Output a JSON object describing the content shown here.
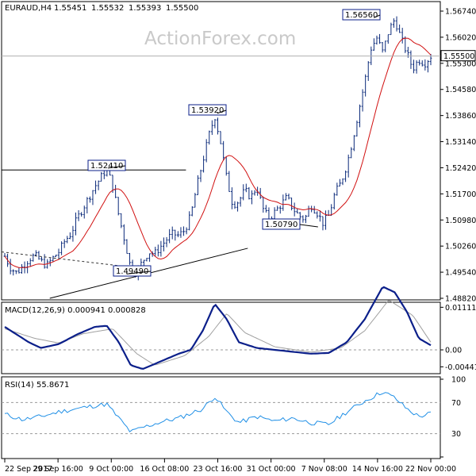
{
  "watermark": "ActionForex.com",
  "colors": {
    "bars": "#0b2a7a",
    "ma": "#d11010",
    "macd": "#0b1f8a",
    "signal": "#a0a0a0",
    "rsi": "#1f8fe6",
    "panel_border": "#000000",
    "grid": "#9a9a9a"
  },
  "x_labels": [
    "22 Sep 2017",
    "29 Sep 16:00",
    "9 Oct 00:00",
    "16 Oct 08:00",
    "23 Oct 16:00",
    "31 Oct 00:00",
    "7 Nov 08:00",
    "14 Nov 16:00",
    "22 Nov 00:00"
  ],
  "chart_data": [
    {
      "type": "line",
      "title": "EURAUD,H4",
      "ohlc": {
        "open": "1.55451",
        "high": "1.55532",
        "low": "1.55393",
        "close": "1.55500"
      },
      "price_tag": "1.55500",
      "ylim": [
        1.4882,
        1.5674
      ],
      "yticks": [
        "1.56740",
        "1.56020",
        "1.55300",
        "1.54580",
        "1.53860",
        "1.53140",
        "1.52420",
        "1.51700",
        "1.50980",
        "1.50260",
        "1.49540",
        "1.48820"
      ],
      "annotations": [
        "1.56560",
        "1.53920",
        "1.52410",
        "1.50790",
        "1.49490"
      ],
      "price_points": [
        {
          "t": 0,
          "p": 1.4998
        },
        {
          "t": 1,
          "p": 1.4965
        },
        {
          "t": 2,
          "p": 1.4952
        },
        {
          "t": 3,
          "p": 1.497
        },
        {
          "t": 4,
          "p": 1.499
        },
        {
          "t": 5,
          "p": 1.5
        },
        {
          "t": 6,
          "p": 1.4985
        },
        {
          "t": 7,
          "p": 1.4972
        },
        {
          "t": 8,
          "p": 1.4993
        },
        {
          "t": 9,
          "p": 1.501
        },
        {
          "t": 10,
          "p": 1.504
        },
        {
          "t": 11,
          "p": 1.506
        },
        {
          "t": 12,
          "p": 1.51
        },
        {
          "t": 13,
          "p": 1.513
        },
        {
          "t": 14,
          "p": 1.516
        },
        {
          "t": 15,
          "p": 1.519
        },
        {
          "t": 16,
          "p": 1.5215
        },
        {
          "t": 17,
          "p": 1.524
        },
        {
          "t": 18,
          "p": 1.519
        },
        {
          "t": 19,
          "p": 1.511
        },
        {
          "t": 20,
          "p": 1.504
        },
        {
          "t": 21,
          "p": 1.4965
        },
        {
          "t": 22,
          "p": 1.4955
        },
        {
          "t": 23,
          "p": 1.4985
        },
        {
          "t": 24,
          "p": 1.501
        },
        {
          "t": 25,
          "p": 1.5005
        },
        {
          "t": 26,
          "p": 1.5025
        },
        {
          "t": 27,
          "p": 1.5045
        },
        {
          "t": 28,
          "p": 1.506
        },
        {
          "t": 29,
          "p": 1.5055
        },
        {
          "t": 30,
          "p": 1.507
        },
        {
          "t": 31,
          "p": 1.511
        },
        {
          "t": 32,
          "p": 1.519
        },
        {
          "t": 33,
          "p": 1.526
        },
        {
          "t": 34,
          "p": 1.533
        },
        {
          "t": 35,
          "p": 1.5385
        },
        {
          "t": 36,
          "p": 1.531
        },
        {
          "t": 37,
          "p": 1.521
        },
        {
          "t": 38,
          "p": 1.514
        },
        {
          "t": 39,
          "p": 1.515
        },
        {
          "t": 40,
          "p": 1.518
        },
        {
          "t": 41,
          "p": 1.516
        },
        {
          "t": 42,
          "p": 1.519
        },
        {
          "t": 43,
          "p": 1.513
        },
        {
          "t": 44,
          "p": 1.51
        },
        {
          "t": 45,
          "p": 1.512
        },
        {
          "t": 46,
          "p": 1.514
        },
        {
          "t": 47,
          "p": 1.516
        },
        {
          "t": 48,
          "p": 1.513
        },
        {
          "t": 49,
          "p": 1.511
        },
        {
          "t": 50,
          "p": 1.51
        },
        {
          "t": 51,
          "p": 1.514
        },
        {
          "t": 52,
          "p": 1.512
        },
        {
          "t": 53,
          "p": 1.509
        },
        {
          "t": 54,
          "p": 1.511
        },
        {
          "t": 55,
          "p": 1.517
        },
        {
          "t": 56,
          "p": 1.52
        },
        {
          "t": 57,
          "p": 1.525
        },
        {
          "t": 58,
          "p": 1.532
        },
        {
          "t": 59,
          "p": 1.54
        },
        {
          "t": 60,
          "p": 1.548
        },
        {
          "t": 61,
          "p": 1.557
        },
        {
          "t": 62,
          "p": 1.56
        },
        {
          "t": 63,
          "p": 1.556
        },
        {
          "t": 64,
          "p": 1.562
        },
        {
          "t": 65,
          "p": 1.5652
        },
        {
          "t": 66,
          "p": 1.56
        },
        {
          "t": 67,
          "p": 1.556
        },
        {
          "t": 68,
          "p": 1.5515
        },
        {
          "t": 69,
          "p": 1.554
        },
        {
          "t": 70,
          "p": 1.553
        },
        {
          "t": 71,
          "p": 1.555
        }
      ]
    },
    {
      "type": "line",
      "title": "MACD(12,26,9) 0.000941 0.000828",
      "ylim": [
        -0.006,
        0.0118
      ],
      "yticks": [
        "0.011111",
        "0.00",
        "-0.004419"
      ],
      "macd_points": [
        {
          "t": 0,
          "v": 0.006
        },
        {
          "t": 4,
          "v": 0.002
        },
        {
          "t": 6,
          "v": 0.0005
        },
        {
          "t": 9,
          "v": 0.0015
        },
        {
          "t": 12,
          "v": 0.004
        },
        {
          "t": 15,
          "v": 0.006
        },
        {
          "t": 17,
          "v": 0.0063
        },
        {
          "t": 19,
          "v": 0.002
        },
        {
          "t": 21,
          "v": -0.004
        },
        {
          "t": 23,
          "v": -0.005
        },
        {
          "t": 26,
          "v": -0.003
        },
        {
          "t": 29,
          "v": -0.001
        },
        {
          "t": 31,
          "v": 0.0
        },
        {
          "t": 33,
          "v": 0.005
        },
        {
          "t": 35,
          "v": 0.012
        },
        {
          "t": 37,
          "v": 0.008
        },
        {
          "t": 39,
          "v": 0.002
        },
        {
          "t": 42,
          "v": 0.0005
        },
        {
          "t": 45,
          "v": 0.0
        },
        {
          "t": 48,
          "v": -0.0005
        },
        {
          "t": 51,
          "v": -0.001
        },
        {
          "t": 54,
          "v": -0.0008
        },
        {
          "t": 57,
          "v": 0.002
        },
        {
          "t": 60,
          "v": 0.008
        },
        {
          "t": 63,
          "v": 0.0165
        },
        {
          "t": 65,
          "v": 0.015
        },
        {
          "t": 67,
          "v": 0.01
        },
        {
          "t": 69,
          "v": 0.003
        },
        {
          "t": 71,
          "v": 0.0012
        }
      ],
      "signal_points": [
        {
          "t": 0,
          "v": 0.0055
        },
        {
          "t": 5,
          "v": 0.003
        },
        {
          "t": 9,
          "v": 0.0018
        },
        {
          "t": 13,
          "v": 0.0042
        },
        {
          "t": 18,
          "v": 0.0055
        },
        {
          "t": 22,
          "v": -0.001
        },
        {
          "t": 25,
          "v": -0.004
        },
        {
          "t": 30,
          "v": -0.0015
        },
        {
          "t": 34,
          "v": 0.0035
        },
        {
          "t": 37,
          "v": 0.0095
        },
        {
          "t": 40,
          "v": 0.0045
        },
        {
          "t": 45,
          "v": 0.0008
        },
        {
          "t": 51,
          "v": -0.0006
        },
        {
          "t": 56,
          "v": 0.0005
        },
        {
          "t": 60,
          "v": 0.005
        },
        {
          "t": 64,
          "v": 0.013
        },
        {
          "t": 68,
          "v": 0.009
        },
        {
          "t": 71,
          "v": 0.002
        }
      ]
    },
    {
      "type": "line",
      "title": "RSI(14) 55.8671",
      "ylim": [
        0,
        100
      ],
      "yticks": [
        "100",
        "70",
        "30",
        "0"
      ],
      "rsi_points": [
        {
          "t": 0,
          "v": 55
        },
        {
          "t": 3,
          "v": 48
        },
        {
          "t": 6,
          "v": 52
        },
        {
          "t": 9,
          "v": 58
        },
        {
          "t": 12,
          "v": 62
        },
        {
          "t": 15,
          "v": 66
        },
        {
          "t": 17,
          "v": 68
        },
        {
          "t": 19,
          "v": 50
        },
        {
          "t": 21,
          "v": 32
        },
        {
          "t": 23,
          "v": 38
        },
        {
          "t": 26,
          "v": 45
        },
        {
          "t": 29,
          "v": 50
        },
        {
          "t": 31,
          "v": 56
        },
        {
          "t": 33,
          "v": 62
        },
        {
          "t": 35,
          "v": 78
        },
        {
          "t": 37,
          "v": 58
        },
        {
          "t": 39,
          "v": 44
        },
        {
          "t": 42,
          "v": 52
        },
        {
          "t": 45,
          "v": 46
        },
        {
          "t": 48,
          "v": 50
        },
        {
          "t": 51,
          "v": 44
        },
        {
          "t": 54,
          "v": 42
        },
        {
          "t": 57,
          "v": 58
        },
        {
          "t": 60,
          "v": 72
        },
        {
          "t": 63,
          "v": 84
        },
        {
          "t": 65,
          "v": 76
        },
        {
          "t": 67,
          "v": 62
        },
        {
          "t": 69,
          "v": 52
        },
        {
          "t": 71,
          "v": 56
        }
      ]
    }
  ]
}
